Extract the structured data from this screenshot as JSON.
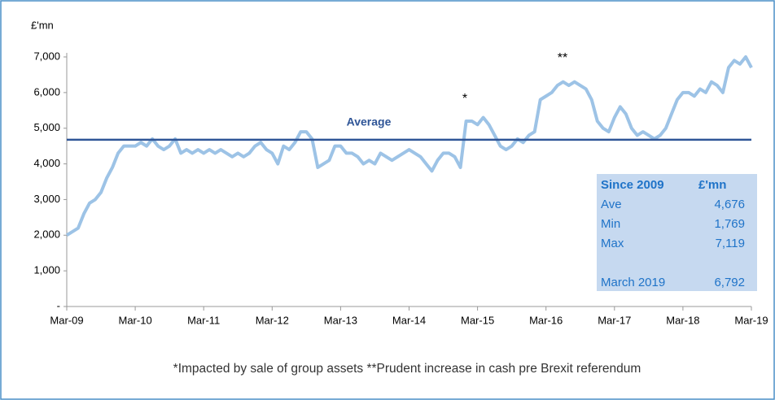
{
  "chart_data": {
    "type": "line",
    "y_label": "£'mn",
    "x": [
      "2009-03",
      "2009-04",
      "2009-05",
      "2009-06",
      "2009-07",
      "2009-08",
      "2009-09",
      "2009-10",
      "2009-11",
      "2009-12",
      "2010-01",
      "2010-02",
      "2010-03",
      "2010-04",
      "2010-05",
      "2010-06",
      "2010-07",
      "2010-08",
      "2010-09",
      "2010-10",
      "2010-11",
      "2010-12",
      "2011-01",
      "2011-02",
      "2011-03",
      "2011-04",
      "2011-05",
      "2011-06",
      "2011-07",
      "2011-08",
      "2011-09",
      "2011-10",
      "2011-11",
      "2011-12",
      "2012-01",
      "2012-02",
      "2012-03",
      "2012-04",
      "2012-05",
      "2012-06",
      "2012-07",
      "2012-08",
      "2012-09",
      "2012-10",
      "2012-11",
      "2012-12",
      "2013-01",
      "2013-02",
      "2013-03",
      "2013-04",
      "2013-05",
      "2013-06",
      "2013-07",
      "2013-08",
      "2013-09",
      "2013-10",
      "2013-11",
      "2013-12",
      "2014-01",
      "2014-02",
      "2014-03",
      "2014-04",
      "2014-05",
      "2014-06",
      "2014-07",
      "2014-08",
      "2014-09",
      "2014-10",
      "2014-11",
      "2014-12",
      "2015-01",
      "2015-02",
      "2015-03",
      "2015-04",
      "2015-05",
      "2015-06",
      "2015-07",
      "2015-08",
      "2015-09",
      "2015-10",
      "2015-11",
      "2015-12",
      "2016-01",
      "2016-02",
      "2016-03",
      "2016-04",
      "2016-05",
      "2016-06",
      "2016-07",
      "2016-08",
      "2016-09",
      "2016-10",
      "2016-11",
      "2016-12",
      "2017-01",
      "2017-02",
      "2017-03",
      "2017-04",
      "2017-05",
      "2017-06",
      "2017-07",
      "2017-08",
      "2017-09",
      "2017-10",
      "2017-11",
      "2017-12",
      "2018-01",
      "2018-02",
      "2018-03",
      "2018-04",
      "2018-05",
      "2018-06",
      "2018-07",
      "2018-08",
      "2018-09",
      "2018-10",
      "2018-11",
      "2018-12",
      "2019-01",
      "2019-02",
      "2019-03"
    ],
    "series": [
      {
        "color": "#9dc3e6",
        "values": [
          2000,
          2100,
          2200,
          2600,
          2900,
          3000,
          3200,
          3600,
          3900,
          4300,
          4500,
          4500,
          4500,
          4600,
          4500,
          4700,
          4500,
          4400,
          4500,
          4700,
          4300,
          4400,
          4300,
          4400,
          4300,
          4400,
          4300,
          4400,
          4300,
          4200,
          4300,
          4200,
          4300,
          4500,
          4600,
          4400,
          4300,
          4000,
          4500,
          4400,
          4600,
          4900,
          4900,
          4700,
          3900,
          4000,
          4100,
          4500,
          4500,
          4300,
          4300,
          4200,
          4000,
          4100,
          4000,
          4300,
          4200,
          4100,
          4200,
          4300,
          4400,
          4300,
          4200,
          4000,
          3800,
          4100,
          4300,
          4300,
          4200,
          3900,
          5200,
          5200,
          5100,
          5300,
          5100,
          4800,
          4500,
          4400,
          4500,
          4700,
          4600,
          4800,
          4900,
          5800,
          5900,
          6000,
          6200,
          6300,
          6200,
          6300,
          6200,
          6100,
          5800,
          5200,
          5000,
          4900,
          5300,
          5600,
          5400,
          5000,
          4800,
          4900,
          4800,
          4700,
          4800,
          5000,
          5400,
          5800,
          6000,
          6000,
          5900,
          6100,
          6000,
          6300,
          6200,
          6000,
          6700,
          6900,
          6800,
          7000,
          6700
        ]
      }
    ],
    "average": {
      "label": "Average",
      "value": 4676,
      "color": "#2f5597"
    },
    "xlim": [
      "2009-03",
      "2019-03"
    ],
    "xticks": [
      {
        "value": "2009-03",
        "label": "Mar-09"
      },
      {
        "value": "2010-03",
        "label": "Mar-10"
      },
      {
        "value": "2011-03",
        "label": "Mar-11"
      },
      {
        "value": "2012-03",
        "label": "Mar-12"
      },
      {
        "value": "2013-03",
        "label": "Mar-13"
      },
      {
        "value": "2014-03",
        "label": "Mar-14"
      },
      {
        "value": "2015-03",
        "label": "Mar-15"
      },
      {
        "value": "2016-03",
        "label": "Mar-16"
      },
      {
        "value": "2017-03",
        "label": "Mar-17"
      },
      {
        "value": "2018-03",
        "label": "Mar-18"
      },
      {
        "value": "2019-03",
        "label": "Mar-19"
      }
    ],
    "ylim": [
      0,
      7000
    ],
    "yticks": [
      {
        "value": 0,
        "label": "-"
      },
      {
        "value": 1000,
        "label": "1,000"
      },
      {
        "value": 2000,
        "label": "2,000"
      },
      {
        "value": 3000,
        "label": "3,000"
      },
      {
        "value": 4000,
        "label": "4,000"
      },
      {
        "value": 5000,
        "label": "5,000"
      },
      {
        "value": 6000,
        "label": "6,000"
      },
      {
        "value": 7000,
        "label": "7,000"
      }
    ],
    "annotations": [
      "*",
      "**"
    ],
    "footnote": "*Impacted by sale of group assets    **Prudent increase in cash pre Brexit referendum"
  },
  "summary_table": {
    "header": [
      "Since 2009",
      "£'mn"
    ],
    "rows": [
      [
        "Ave",
        "4,676"
      ],
      [
        "Min",
        "1,769"
      ],
      [
        "Max",
        "7,119"
      ],
      [
        "March 2019",
        "6,792"
      ]
    ]
  }
}
